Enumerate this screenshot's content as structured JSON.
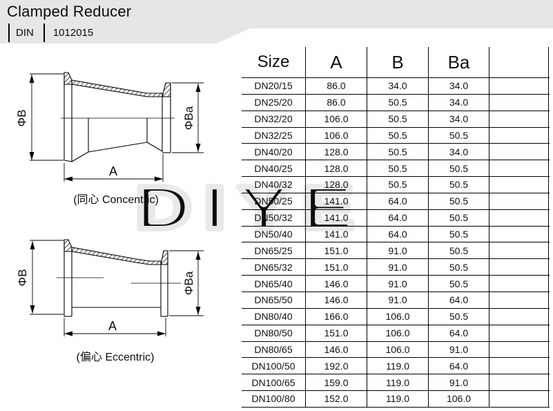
{
  "header": {
    "title": "Clamped Reducer",
    "standard": "DIN",
    "code": "1012015"
  },
  "drawings": {
    "concentric": {
      "label_b": "ΦB",
      "label_ba": "ΦBa",
      "label_a": "A",
      "caption": "(同心 Concentric)"
    },
    "eccentric": {
      "label_b": "ΦB",
      "label_ba": "ΦBa",
      "label_a": "A",
      "caption": "(偏心 Eccentric)"
    }
  },
  "watermark": {
    "text": "DIYE",
    "color": "#e9e9e9"
  },
  "colors": {
    "header_bg": "#e6e6e6",
    "line": "#000000"
  },
  "table": {
    "columns": [
      "Size",
      "A",
      "B",
      "Ba",
      ""
    ],
    "rows": [
      [
        "DN20/15",
        "86.0",
        "34.0",
        "34.0"
      ],
      [
        "DN25/20",
        "86.0",
        "50.5",
        "34.0"
      ],
      [
        "DN32/20",
        "106.0",
        "50.5",
        "34.0"
      ],
      [
        "DN32/25",
        "106.0",
        "50.5",
        "50.5"
      ],
      [
        "DN40/20",
        "128.0",
        "50.5",
        "34.0"
      ],
      [
        "DN40/25",
        "128.0",
        "50.5",
        "50.5"
      ],
      [
        "DN40/32",
        "128.0",
        "50.5",
        "50.5"
      ],
      [
        "DN50/25",
        "141.0",
        "64.0",
        "50.5"
      ],
      [
        "DN50/32",
        "141.0",
        "64.0",
        "50.5"
      ],
      [
        "DN50/40",
        "141.0",
        "64.0",
        "50.5"
      ],
      [
        "DN65/25",
        "151.0",
        "91.0",
        "50.5"
      ],
      [
        "DN65/32",
        "151.0",
        "91.0",
        "50.5"
      ],
      [
        "DN65/40",
        "146.0",
        "91.0",
        "50.5"
      ],
      [
        "DN65/50",
        "146.0",
        "91.0",
        "64.0"
      ],
      [
        "DN80/40",
        "166.0",
        "106.0",
        "50.5"
      ],
      [
        "DN80/50",
        "151.0",
        "106.0",
        "64.0"
      ],
      [
        "DN80/65",
        "146.0",
        "106.0",
        "91.0"
      ],
      [
        "DN100/50",
        "192.0",
        "119.0",
        "64.0"
      ],
      [
        "DN100/65",
        "159.0",
        "119.0",
        "91.0"
      ],
      [
        "DN100/80",
        "152.0",
        "119.0",
        "106.0"
      ]
    ]
  }
}
